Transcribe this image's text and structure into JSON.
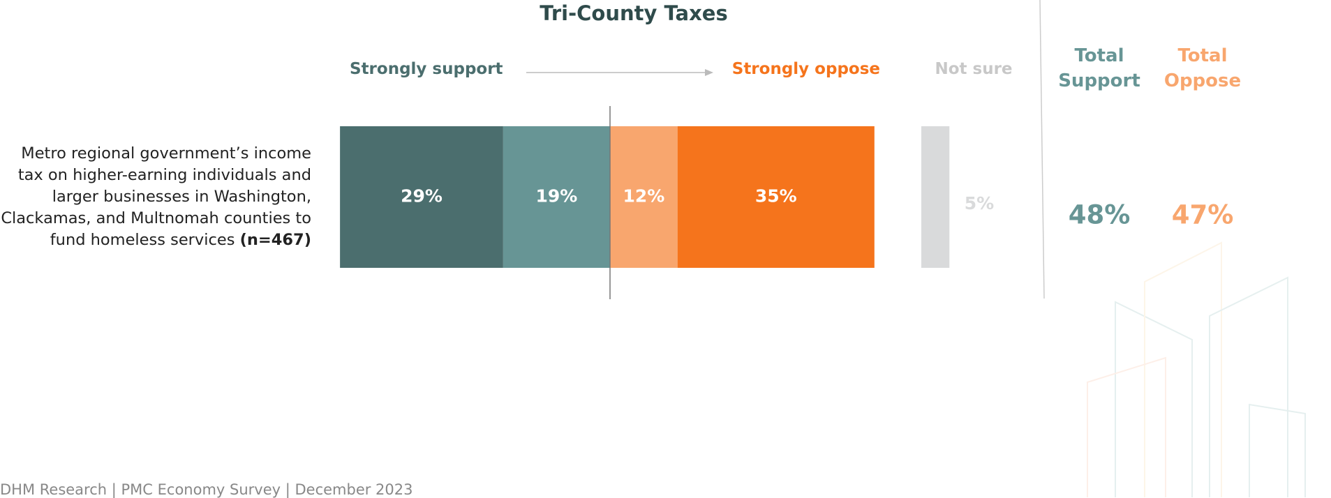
{
  "chart_data": {
    "type": "diverging_bar",
    "title": "Tri-County Taxes",
    "categories": [
      "Metro regional government’s income tax on higher-earning individuals and larger businesses in Washington, Clackamas, and Multnomah counties to fund homeless services"
    ],
    "sample_size": "(n=467)",
    "series": [
      {
        "name": "Strongly support",
        "group": "support",
        "color": "#4b6e6e",
        "values": [
          29
        ],
        "value_labels": [
          "29%"
        ]
      },
      {
        "group": "support",
        "color": "#679595",
        "values": [
          19
        ],
        "value_labels": [
          "19%"
        ]
      },
      {
        "group": "oppose",
        "color": "#f8a66e",
        "values": [
          12
        ],
        "value_labels": [
          "12%"
        ]
      },
      {
        "name": "Strongly oppose",
        "group": "oppose",
        "color": "#f5741c",
        "values": [
          35
        ],
        "value_labels": [
          "35%"
        ]
      },
      {
        "name": "Not sure",
        "group": "separate",
        "color": "#d9dadb",
        "values": [
          5
        ],
        "value_labels": [
          "5%"
        ]
      }
    ],
    "totals": [
      {
        "name": "Total Support",
        "color": "#679595",
        "values": [
          48
        ],
        "value_labels": [
          "48%"
        ]
      },
      {
        "name": "Total Oppose",
        "color": "#f8a66e",
        "values": [
          47
        ],
        "value_labels": [
          "47%"
        ]
      }
    ],
    "source": "DHM Research | PMC Economy Survey | December 2023"
  }
}
